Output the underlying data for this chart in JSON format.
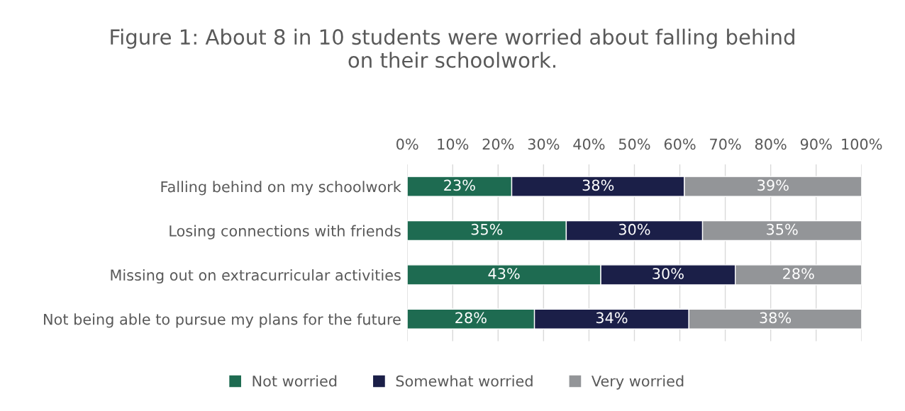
{
  "chart_data": {
    "type": "bar",
    "orientation": "horizontal",
    "stacked": true,
    "title": "Figure 1: About 8 in 10 students were worried about falling behind\non their schoolwork.",
    "categories": [
      "Falling behind on my schoolwork",
      "Losing connections with friends",
      "Missing out on extracurricular activities",
      "Not being able to pursue my plans for the future"
    ],
    "series": [
      {
        "name": "Not worried",
        "color": "#1e6b51",
        "values": [
          23,
          35,
          42.6,
          28
        ],
        "value_labels": [
          "23%",
          "35%",
          "43%",
          "28%"
        ]
      },
      {
        "name": "Somewhat worried",
        "color": "#1b1f48",
        "values": [
          38,
          30,
          29.6,
          34
        ],
        "value_labels": [
          "38%",
          "30%",
          "30%",
          "34%"
        ]
      },
      {
        "name": "Very worried",
        "color": "#939598",
        "values": [
          39,
          35,
          27.8,
          38
        ],
        "value_labels": [
          "39%",
          "35%",
          "28%",
          "38%"
        ]
      }
    ],
    "xlim": [
      0,
      100
    ],
    "xticks": [
      {
        "value": 0,
        "label": "0%"
      },
      {
        "value": 10,
        "label": "10%"
      },
      {
        "value": 20,
        "label": "20%"
      },
      {
        "value": 30,
        "label": "30%"
      },
      {
        "value": 40,
        "label": "40%"
      },
      {
        "value": 50,
        "label": "50%"
      },
      {
        "value": 60,
        "label": "60%"
      },
      {
        "value": 70,
        "label": "70%"
      },
      {
        "value": 80,
        "label": "80%"
      },
      {
        "value": 90,
        "label": "90%"
      },
      {
        "value": 100,
        "label": "100%"
      }
    ],
    "grid": "x",
    "legend": "bottom",
    "marker": "square"
  }
}
